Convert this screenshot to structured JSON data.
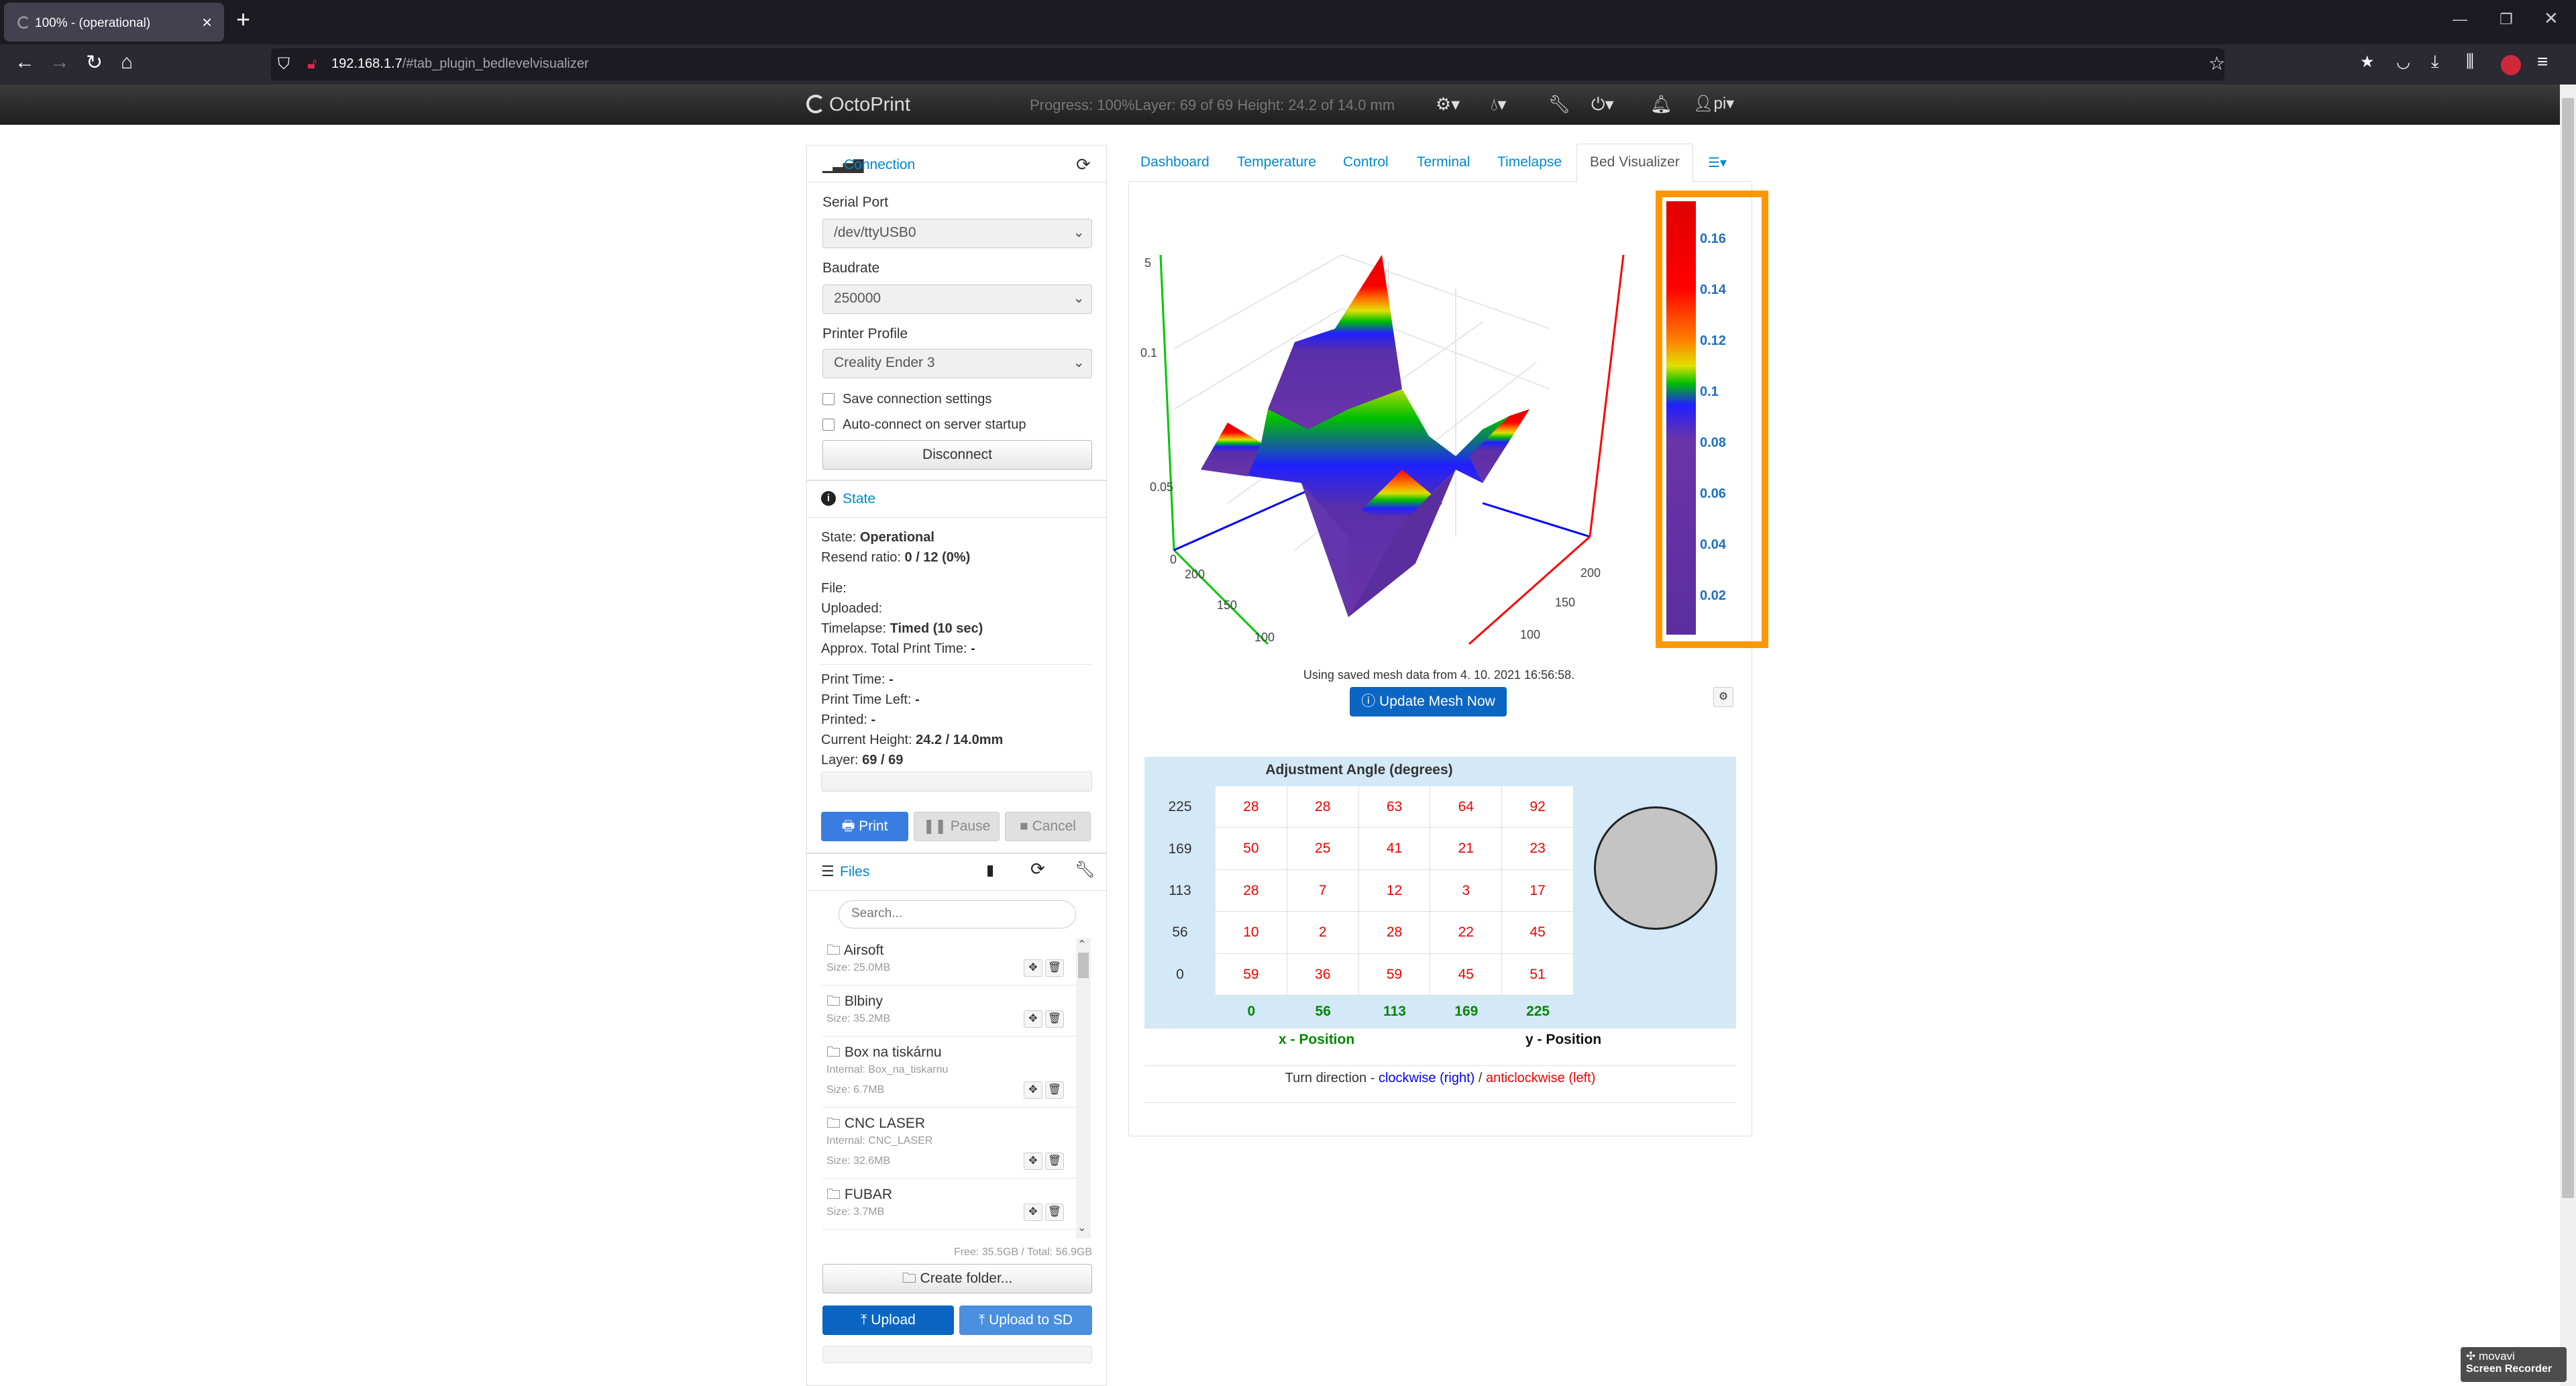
{
  "browser": {
    "tab_title": "100% - (operational)",
    "url_host": "192.168.1.7",
    "url_path": "/#tab_plugin_bedlevelvisualizer"
  },
  "navbar": {
    "brand": "OctoPrint",
    "status": "Progress: 100%Layer: 69    of 69  Height: 24.2     of 14.0    mm",
    "user": "pi"
  },
  "connection": {
    "title": "Connection",
    "serial_label": "Serial Port",
    "serial_value": "/dev/ttyUSB0",
    "baud_label": "Baudrate",
    "baud_value": "250000",
    "profile_label": "Printer Profile",
    "profile_value": "Creality Ender 3",
    "save_label": "Save connection settings",
    "auto_label": "Auto-connect on server startup",
    "disconnect": "Disconnect"
  },
  "state": {
    "title": "State",
    "state_k": "State: ",
    "state_v": "Operational",
    "resend_k": "Resend ratio: ",
    "resend_v": "0 / 12 (0%)",
    "file": "File:",
    "uploaded": "Uploaded:",
    "timelapse_k": "Timelapse: ",
    "timelapse_v": "Timed (10 sec)",
    "approx_k": "Approx. Total Print Time: ",
    "approx_v": "-",
    "ptime_k": "Print Time: ",
    "ptime_v": "-",
    "pleft_k": "Print Time Left: ",
    "pleft_v": "-",
    "printed_k": "Printed: ",
    "printed_v": "-",
    "height_k": "Current Height: ",
    "height_v": "24.2 / 14.0mm",
    "layer_k": "Layer: ",
    "layer_v": "69 / 69",
    "print": "Print",
    "pause": "Pause",
    "cancel": "Cancel"
  },
  "files": {
    "title": "Files",
    "search_placeholder": "Search...",
    "items": [
      {
        "name": "Airsoft",
        "size": "Size: 25.0MB"
      },
      {
        "name": "Blbiny",
        "size": "Size: 35.2MB"
      },
      {
        "name": "Box na tiskárnu",
        "internal": "Internal: Box_na_tiskarnu",
        "size": "Size: 6.7MB"
      },
      {
        "name": "CNC LASER",
        "internal": "Internal: CNC_LASER",
        "size": "Size: 32.6MB"
      },
      {
        "name": "FUBAR",
        "size": "Size: 3.7MB"
      }
    ],
    "free": "Free: 35.5GB / Total: 56.9GB",
    "create_folder": "Create folder...",
    "upload": "Upload",
    "upload_sd": "Upload to SD"
  },
  "tabs": [
    "Dashboard",
    "Temperature",
    "Control",
    "Terminal",
    "Timelapse",
    "Bed Visualizer"
  ],
  "visualizer": {
    "mesh_info": "Using saved mesh data from 4. 10. 2021 16:56:58.",
    "update_btn": "Update Mesh Now",
    "z_ticks": [
      "5",
      "0.1",
      "0.05",
      "0"
    ],
    "x_ticks": [
      "200",
      "150",
      "100"
    ],
    "y_ticks": [
      "200",
      "150",
      "100"
    ],
    "colorbar": {
      "ticks": [
        "0.16",
        "0.14",
        "0.12",
        "0.1",
        "0.08",
        "0.06",
        "0.04",
        "0.02"
      ],
      "range": [
        0.005,
        0.175
      ],
      "highlight_color": "#ff9800"
    }
  },
  "adjust": {
    "title": "Adjustment Angle (degrees)",
    "rows": [
      {
        "y": "225",
        "vals": [
          "28",
          "28",
          "63",
          "64",
          "92"
        ]
      },
      {
        "y": "169",
        "vals": [
          "50",
          "25",
          "41",
          "21",
          "23"
        ]
      },
      {
        "y": "113",
        "vals": [
          "28",
          "7",
          "12",
          "3",
          "17"
        ]
      },
      {
        "y": "56",
        "vals": [
          "10",
          "2",
          "28",
          "22",
          "45"
        ]
      },
      {
        "y": "0",
        "vals": [
          "59",
          "36",
          "59",
          "45",
          "51"
        ]
      }
    ],
    "x_vals": [
      "0",
      "56",
      "113",
      "169",
      "225"
    ],
    "x_label": "x - Position",
    "y_label": "y - Position",
    "turn_prefix": "Turn direction - ",
    "clockwise": "clockwise (right)",
    "slash": " / ",
    "anticlockwise": "anticlockwise (left)"
  },
  "watermark": {
    "line1": "movavi",
    "line2": "Screen Recorder"
  }
}
